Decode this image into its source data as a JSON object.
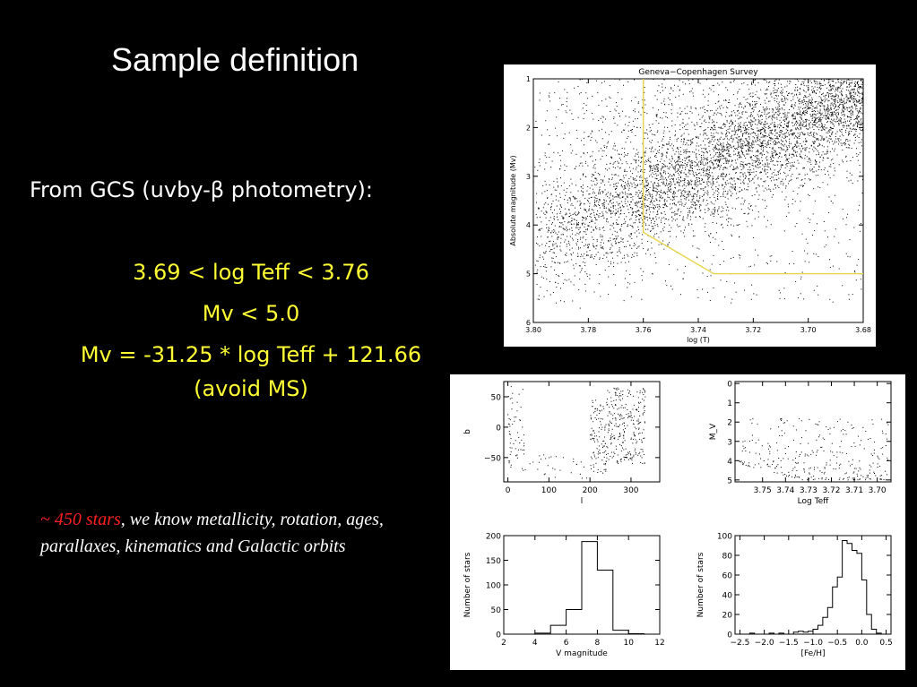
{
  "slide": {
    "title": "Sample definition",
    "intro": "From GCS (uvby-β photometry):",
    "criteria": [
      "3.69 < log Teff < 3.76",
      "Mv < 5.0",
      "Mv = -31.25 * log Teff + 121.66",
      "(avoid MS)"
    ],
    "note_highlight": "~ 450 stars",
    "note_rest": ", we know metallicity, rotation, ages, parallaxes, kinematics and Galactic orbits"
  },
  "colors": {
    "background": "#000000",
    "text": "#ffffff",
    "criteria": "#ffff33",
    "highlight": "#ff2020",
    "selection_line": "#e8d44a"
  },
  "chart_data": [
    {
      "type": "scatter",
      "title": "Geneva−Copenhagen Survey",
      "xlabel": "log (T)",
      "ylabel": "Absolute magnitude (Mv)",
      "xlim": [
        3.8,
        3.68
      ],
      "ylim": [
        6,
        1
      ],
      "xticks": [
        "3.80",
        "3.78",
        "3.76",
        "3.74",
        "3.72",
        "3.70",
        "3.68"
      ],
      "yticks": [
        "1",
        "2",
        "3",
        "4",
        "5",
        "6"
      ],
      "selection_box": [
        [
          3.76,
          1.0
        ],
        [
          3.76,
          4.15
        ],
        [
          3.7344,
          5.0
        ],
        [
          3.68,
          5.0
        ]
      ]
    },
    {
      "type": "scatter",
      "xlabel": "l",
      "ylabel": "b",
      "xlim": [
        -10,
        370
      ],
      "ylim": [
        -90,
        75
      ],
      "xticks": [
        "0",
        "100",
        "200",
        "300"
      ],
      "yticks": [
        "50",
        "0",
        "−50"
      ]
    },
    {
      "type": "scatter",
      "xlabel": "Log Teff",
      "ylabel": "M_V",
      "xlim": [
        3.762,
        3.694
      ],
      "ylim": [
        5.1,
        -0.1
      ],
      "xticks": [
        "3.75",
        "3.74",
        "3.73",
        "3.72",
        "3.71",
        "3.70"
      ],
      "yticks": [
        "0",
        "1",
        "2",
        "3",
        "4",
        "5"
      ]
    },
    {
      "type": "bar",
      "xlabel": "V magnitude",
      "ylabel": "Number of stars",
      "xlim": [
        2,
        12
      ],
      "ylim": [
        0,
        200
      ],
      "xticks": [
        "2",
        "4",
        "6",
        "8",
        "10",
        "12"
      ],
      "yticks": [
        "0",
        "50",
        "100",
        "150",
        "200"
      ],
      "bin_edges": [
        2,
        3,
        4,
        5,
        6,
        7,
        8,
        9,
        10,
        11,
        12
      ],
      "values": [
        0,
        0,
        2,
        18,
        50,
        188,
        130,
        8,
        1,
        0
      ]
    },
    {
      "type": "bar",
      "xlabel": "[Fe/H]",
      "ylabel": "Number of stars",
      "xlim": [
        -2.6,
        0.6
      ],
      "ylim": [
        0,
        100
      ],
      "xticks": [
        "−2.5",
        "−2.0",
        "−1.5",
        "−1.0",
        "−0.5",
        "0.0",
        "0.5"
      ],
      "yticks": [
        "0",
        "20",
        "40",
        "60",
        "80",
        "100"
      ],
      "bin_edges": [
        -2.6,
        -2.5,
        -2.4,
        -2.3,
        -2.2,
        -2.1,
        -2.0,
        -1.9,
        -1.8,
        -1.7,
        -1.6,
        -1.5,
        -1.4,
        -1.3,
        -1.2,
        -1.1,
        -1.0,
        -0.9,
        -0.8,
        -0.7,
        -0.6,
        -0.5,
        -0.4,
        -0.3,
        -0.2,
        -0.1,
        0.0,
        0.1,
        0.2,
        0.3,
        0.4,
        0.5,
        0.6
      ],
      "values": [
        0,
        0,
        0,
        1,
        0,
        0,
        0,
        1,
        0,
        1,
        0,
        0,
        2,
        3,
        2,
        3,
        5,
        9,
        17,
        27,
        48,
        58,
        95,
        92,
        85,
        82,
        55,
        20,
        5,
        1,
        0,
        0
      ]
    }
  ]
}
